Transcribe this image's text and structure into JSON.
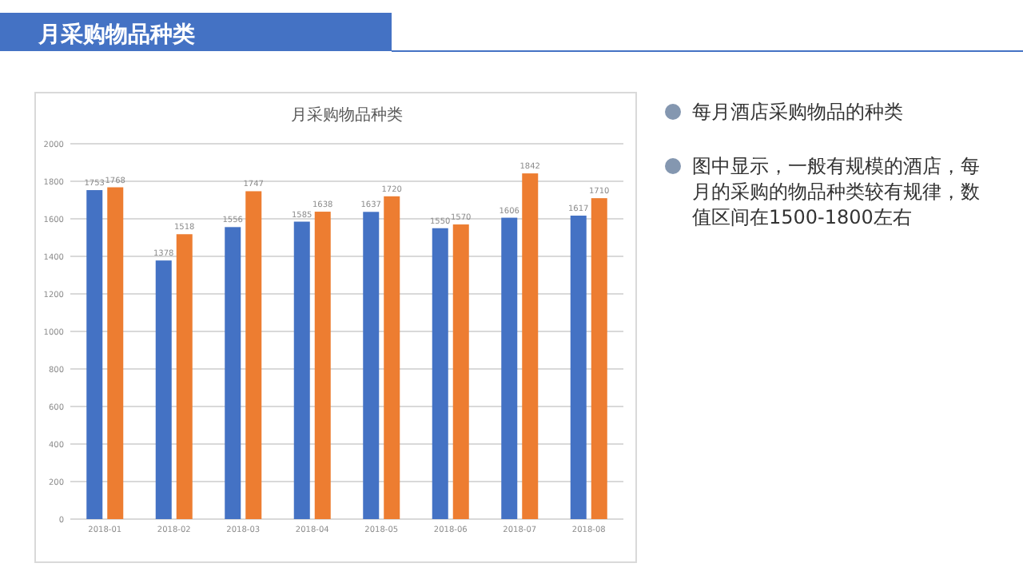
{
  "chart_data": {
    "type": "bar",
    "title": "月采购物品种类",
    "categories": [
      "2018-01",
      "2018-02",
      "2018-03",
      "2018-04",
      "2018-05",
      "2018-06",
      "2018-07",
      "2018-08"
    ],
    "series": [
      {
        "color": "#4472c4",
        "values": [
          1753,
          1378,
          1556,
          1585,
          1637,
          1550,
          1606,
          1617
        ]
      },
      {
        "color": "#ed7d31",
        "values": [
          1768,
          1518,
          1747,
          1638,
          1720,
          1570,
          1842,
          1710
        ]
      }
    ],
    "ylim": [
      0,
      2000
    ],
    "yticks": [
      0,
      200,
      400,
      600,
      800,
      1000,
      1200,
      1400,
      1600,
      1800,
      2000
    ],
    "grid": "y",
    "data_labels": true,
    "annotations": [
      "月采购物品种类",
      "每月酒店采购物品的种类",
      "图中显示，一般有规模的酒店，每月的采购的物品种类较有规律，数值区间在1500-1800左右"
    ]
  }
}
